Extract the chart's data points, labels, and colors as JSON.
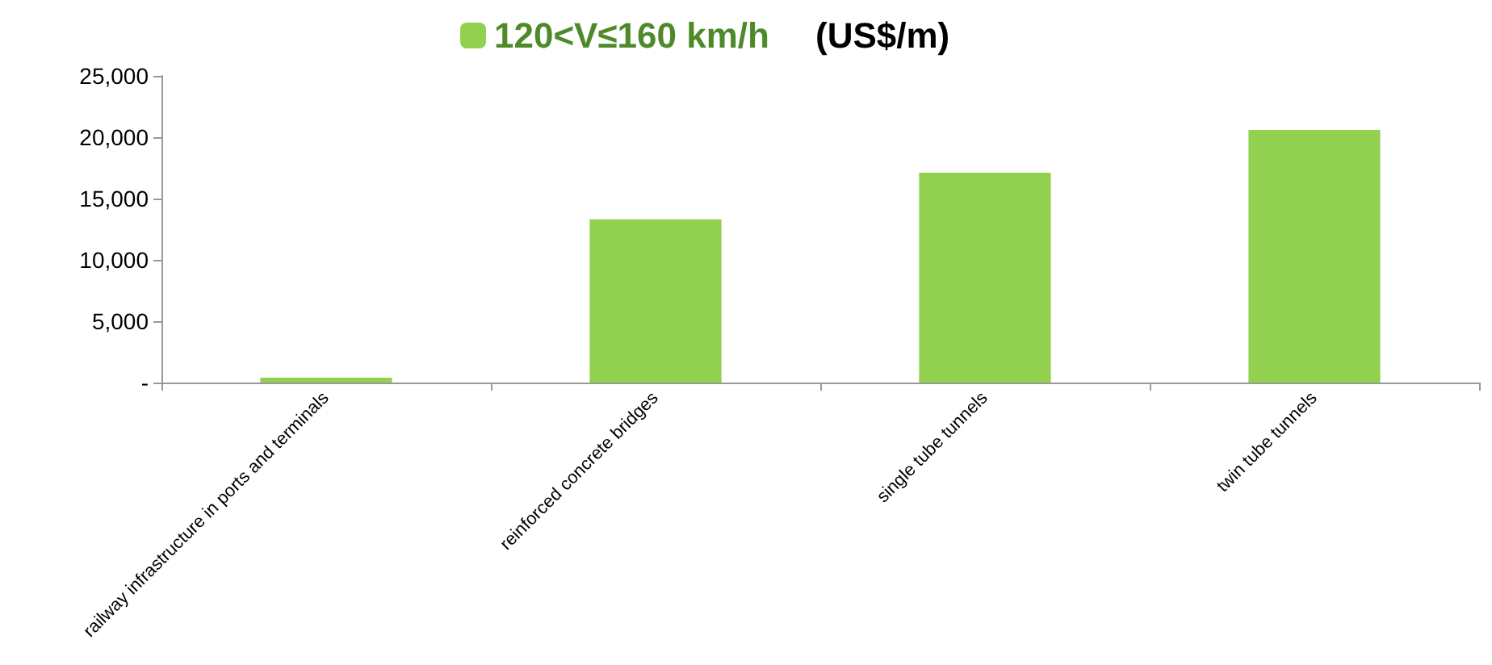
{
  "chart_data": {
    "type": "bar",
    "title": "(US$/m)",
    "categories": [
      "railway infrastructure in ports and terminals",
      "reinforced concrete bridges",
      "single tube tunnels",
      "twin tube tunnels"
    ],
    "series": [
      {
        "name": "120<V≤160 km/h",
        "color": "#92d050",
        "values": [
          400,
          13300,
          17100,
          20600
        ]
      }
    ],
    "ylim": [
      0,
      25000
    ],
    "yticks": [
      {
        "value": 0,
        "label": "-"
      },
      {
        "value": 5000,
        "label": "5,000"
      },
      {
        "value": 10000,
        "label": "10,000"
      },
      {
        "value": 15000,
        "label": "15,000"
      },
      {
        "value": 20000,
        "label": "20,000"
      },
      {
        "value": 25000,
        "label": "25,000"
      }
    ],
    "grid": false,
    "legend": "top"
  }
}
